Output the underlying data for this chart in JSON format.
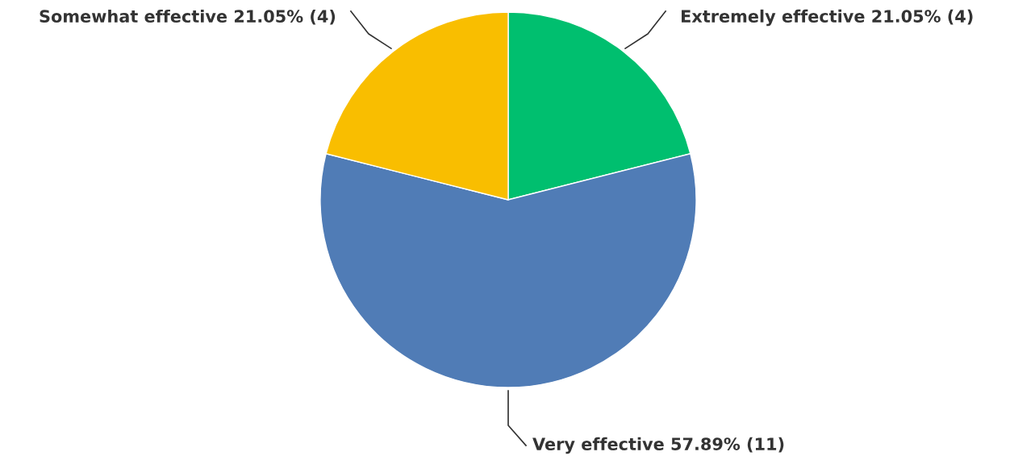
{
  "chart_data": {
    "type": "pie",
    "categories": [
      "Extremely effective",
      "Very effective",
      "Somewhat effective"
    ],
    "values": [
      21.05,
      57.89,
      21.05
    ],
    "value_labels": [
      "21.05% (4)",
      "57.89% (11)",
      "21.05% (4)"
    ],
    "colors": [
      "#00bf6f",
      "#507cb6",
      "#f9be00"
    ],
    "legend": false
  }
}
